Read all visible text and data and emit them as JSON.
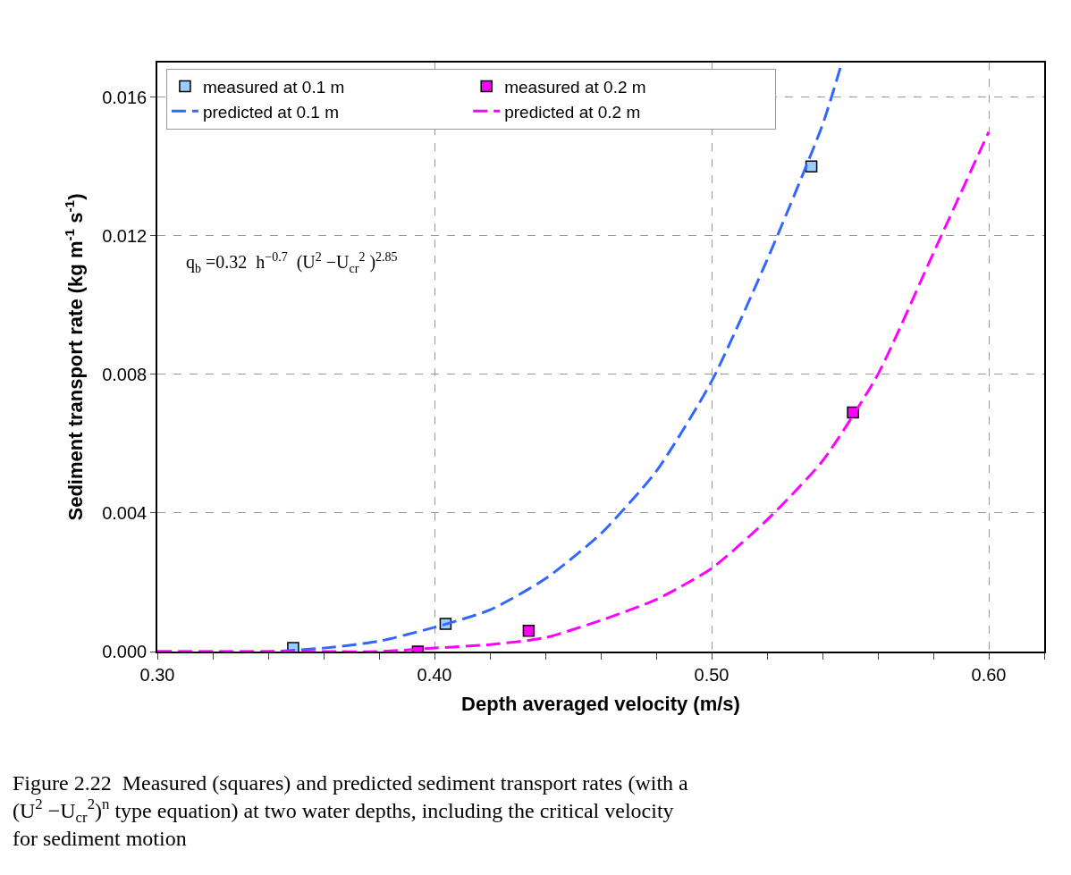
{
  "chart_data": {
    "type": "scatter",
    "xlabel": "Depth averaged velocity (m/s)",
    "ylabel": "Sediment transport rate (kg m$^{-1}$ s$^{-1}$)",
    "xlim": [
      0.3,
      0.62
    ],
    "xticks": [
      {
        "value": 0.3,
        "label": "0.30"
      },
      {
        "value": 0.32,
        "label": null
      },
      {
        "value": 0.34,
        "label": null
      },
      {
        "value": 0.36,
        "label": null
      },
      {
        "value": 0.38,
        "label": null
      },
      {
        "value": 0.4,
        "label": "0.40"
      },
      {
        "value": 0.42,
        "label": null
      },
      {
        "value": 0.44,
        "label": null
      },
      {
        "value": 0.46,
        "label": null
      },
      {
        "value": 0.48,
        "label": null
      },
      {
        "value": 0.5,
        "label": "0.50"
      },
      {
        "value": 0.52,
        "label": null
      },
      {
        "value": 0.54,
        "label": null
      },
      {
        "value": 0.56,
        "label": null
      },
      {
        "value": 0.58,
        "label": null
      },
      {
        "value": 0.6,
        "label": "0.60"
      },
      {
        "value": 0.62,
        "label": null
      }
    ],
    "ylim": [
      0,
      0.017
    ],
    "yticks": [
      {
        "value": 0,
        "label": "0.000"
      },
      {
        "value": 0.004,
        "label": "0.004"
      },
      {
        "value": 0.008,
        "label": "0.008"
      },
      {
        "value": 0.012,
        "label": "0.012"
      },
      {
        "value": 0.016,
        "label": "0.016"
      }
    ],
    "grid": true,
    "legend": "top left",
    "series": [
      {
        "name": "measured at 0.1 m",
        "marker": "square",
        "color": "#99ccff",
        "x": [
          0.349,
          0.404,
          0.536
        ],
        "values": [
          0.0001,
          0.0008,
          0.014
        ]
      },
      {
        "name": "measured at 0.2 m",
        "marker": "square",
        "color": "#ff00ff",
        "x": [
          0.394,
          0.434,
          0.551
        ],
        "values": [
          0,
          0.0006,
          0.0069
        ]
      },
      {
        "name": "predicted at 0.1 m",
        "type": "line",
        "marker": "none",
        "line_style": "dashed",
        "color": "#3366ff",
        "x": [
          0.3,
          0.34,
          0.36,
          0.38,
          0.4,
          0.42,
          0.44,
          0.46,
          0.48,
          0.5,
          0.52,
          0.54,
          0.547
        ],
        "values": [
          0,
          0,
          0.0001,
          0.0003,
          0.0007,
          0.0012,
          0.0021,
          0.0034,
          0.0052,
          0.0078,
          0.0113,
          0.0152,
          0.017
        ]
      },
      {
        "name": "predicted at 0.2 m",
        "type": "line",
        "marker": "none",
        "line_style": "dashed",
        "color": "#ff00ff",
        "x": [
          0.3,
          0.36,
          0.38,
          0.4,
          0.42,
          0.44,
          0.46,
          0.48,
          0.5,
          0.52,
          0.54,
          0.56,
          0.58,
          0.6
        ],
        "values": [
          0,
          0,
          0,
          0.0001,
          0.0002,
          0.0004,
          0.0009,
          0.0015,
          0.0024,
          0.0038,
          0.0055,
          0.008,
          0.0115,
          0.015
        ]
      }
    ],
    "annotations": [
      "q$_{b}$ =0.32  h$^{−0.7}$  (U$^{2}$ −U$_{cr}$$^{2}$ )$^{2.85}$",
      "Figure 2.22  Measured (squares) and predicted sediment transport rates (with a (U$^{2}$ −U$_{cr}$$^{2}$)$^{n}$ type equation) at two water depths, including the critical velocity for sediment motion"
    ]
  }
}
